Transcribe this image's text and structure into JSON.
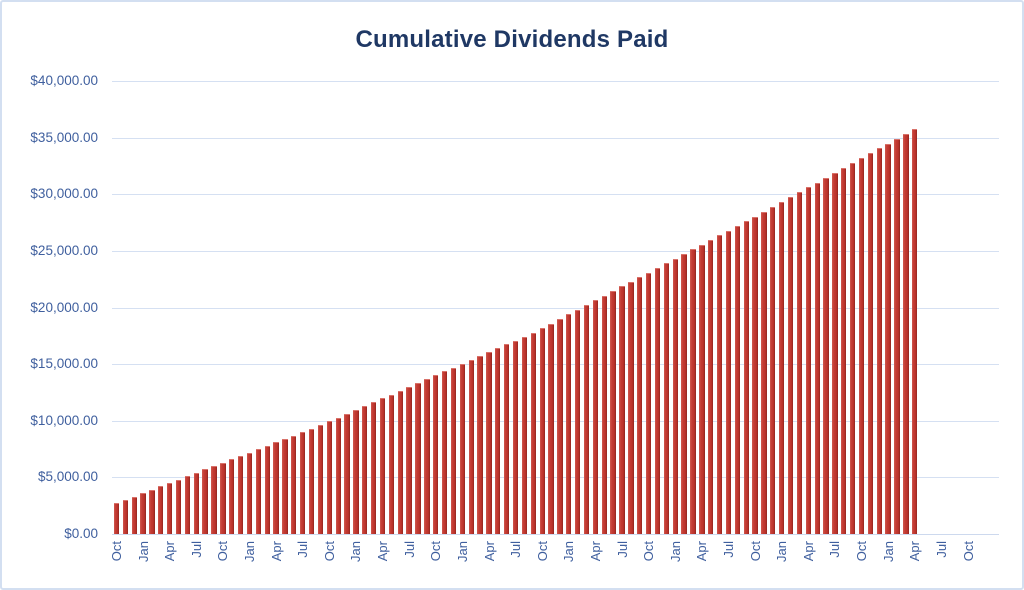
{
  "frame": {
    "border_color": "#d3dff1",
    "background": "#ffffff"
  },
  "chart_data": {
    "type": "bar",
    "title": "Cumulative Dividends Paid",
    "title_color": "#1f3864",
    "xlabel": "",
    "ylabel": "",
    "grid": true,
    "legend": null,
    "ylim": [
      0,
      40000
    ],
    "y_tick_step": 5000,
    "y_tick_labels": [
      "$0.00",
      "$5,000.00",
      "$10,000.00",
      "$15,000.00",
      "$20,000.00",
      "$25,000.00",
      "$30,000.00",
      "$35,000.00",
      "$40,000.00"
    ],
    "x_tick_every": 3,
    "x_tick_labels": [
      "Oct",
      "Jan",
      "Apr",
      "Jul",
      "Oct",
      "Jan",
      "Apr",
      "Jul",
      "Oct",
      "Jan",
      "Apr",
      "Jul",
      "Oct",
      "Jan",
      "Apr",
      "Jul",
      "Oct",
      "Jan",
      "Apr",
      "Jul",
      "Oct",
      "Jan",
      "Apr",
      "Jul",
      "Oct",
      "Jan",
      "Apr",
      "Jul",
      "Oct",
      "Jan",
      "Apr",
      "Jul",
      "Oct"
    ],
    "total_slots": 100,
    "bar_width_ratio": 0.6,
    "bar_color": "#c23b33",
    "bar_gradient": [
      "#d0594f",
      "#c33b33",
      "#8f251f"
    ],
    "grid_color": "#d5e0f2",
    "axis_label_color": "#3f5f9e",
    "values": [
      2700,
      3000,
      3300,
      3600,
      3900,
      4200,
      4500,
      4800,
      5100,
      5400,
      5700,
      6000,
      6300,
      6600,
      6900,
      7200,
      7500,
      7800,
      8100,
      8400,
      8700,
      9000,
      9300,
      9600,
      9940,
      10280,
      10620,
      10960,
      11300,
      11640,
      11980,
      12320,
      12660,
      13000,
      13340,
      13680,
      14020,
      14360,
      14700,
      15040,
      15380,
      15720,
      16060,
      16400,
      16740,
      17080,
      17420,
      17760,
      18170,
      18580,
      18990,
      19400,
      19810,
      20220,
      20630,
      21040,
      21450,
      21860,
      22270,
      22680,
      23090,
      23500,
      23910,
      24320,
      24730,
      25140,
      25550,
      25960,
      26370,
      26780,
      27190,
      27600,
      28030,
      28460,
      28890,
      29320,
      29750,
      30180,
      30610,
      31040,
      31470,
      31900,
      32330,
      32760,
      33190,
      33620,
      34050,
      34480,
      34910,
      35340,
      35770
    ]
  }
}
